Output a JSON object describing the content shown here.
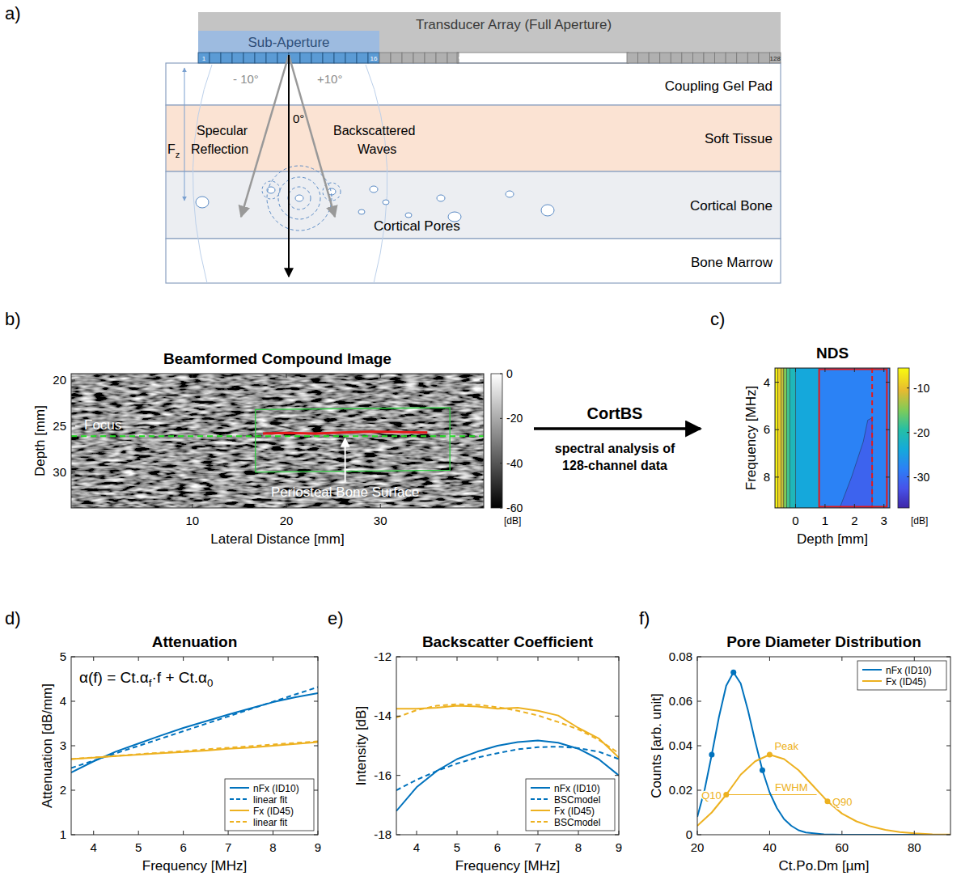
{
  "panel_labels": [
    "a)",
    "b)",
    "c)",
    "d)",
    "e)",
    "f)"
  ],
  "diagram": {
    "transducer": "Transducer Array (Full Aperture)",
    "sub_aperture": "Sub-Aperture",
    "element_labels": [
      "1",
      "16",
      "128"
    ],
    "angles": [
      "- 10°",
      "+10°",
      "0°"
    ],
    "specular": [
      "Specular",
      "Reflection"
    ],
    "backscatter": [
      "Backscattered",
      "Waves"
    ],
    "force": [
      {
        "text": "F"
      },
      {
        "text": "z",
        "sub": true
      }
    ],
    "layers": [
      "Coupling Gel Pad",
      "Soft Tissue",
      "Cortical Bone",
      "Bone Marrow"
    ],
    "pores": "Cortical Pores"
  },
  "transform": {
    "label": "CortBS",
    "caption": [
      "spectral analysis of",
      "128-channel data"
    ]
  },
  "chart_data": [
    {
      "type": "image",
      "title": "Beamformed Compound Image",
      "xlabel": "Lateral Distance [mm]",
      "ylabel": "Depth [mm]",
      "xlim": [
        -2.9,
        41
      ],
      "xticks": [
        10,
        20,
        30
      ],
      "ylim": [
        33.9,
        19.3
      ],
      "yticks": [
        20,
        25,
        30
      ],
      "colorbar": {
        "lim": [
          -60,
          0
        ],
        "ticks": [
          0,
          -20,
          -40,
          -60
        ],
        "unit": "[dB]"
      },
      "focus": {
        "label": "Focus",
        "y": 26.1
      },
      "roi": {
        "x": [
          16.7,
          37.4,
          37.4,
          16.7
        ],
        "y": [
          23.2,
          23.0,
          29.8,
          30.0
        ]
      },
      "surface": {
        "label": "Periosteal Bone Surface",
        "x": [
          17.5,
          20,
          23,
          26,
          29,
          32,
          35
        ],
        "y": [
          25.8,
          25.75,
          25.8,
          25.7,
          25.6,
          25.65,
          25.7
        ]
      }
    },
    {
      "type": "contour",
      "title": "NDS",
      "xlabel": "Depth [mm]",
      "ylabel": "Frequency [MHz]",
      "xlim": [
        -0.7,
        3.2
      ],
      "xticks": [
        0,
        1,
        2,
        3
      ],
      "ylim": [
        9.3,
        3.4
      ],
      "yticks": [
        4,
        6,
        8
      ],
      "colorbar": {
        "lim": [
          -37,
          -5.5
        ],
        "ticks": [
          -10,
          -20,
          -30
        ],
        "unit": "[dB]"
      },
      "bands": {
        "x0": [
          -0.7,
          -0.6,
          -0.5,
          -0.4,
          -0.3,
          -0.2,
          0.0,
          0.8
        ],
        "x1": [
          -0.6,
          -0.5,
          -0.4,
          -0.3,
          -0.2,
          0.0,
          0.8,
          3.2
        ],
        "values": [
          -6,
          -9,
          -12,
          -15,
          -18,
          -21,
          -24,
          -28
        ]
      },
      "region": {
        "value": -31,
        "x": [
          1.5,
          1.9,
          2.3,
          2.45,
          2.6,
          2.6
        ],
        "y": [
          9.3,
          8.0,
          6.5,
          5.6,
          5.5,
          9.3
        ]
      },
      "roi": {
        "x": [
          0.8,
          3.1
        ]
      },
      "cut": 2.6
    },
    {
      "type": "line",
      "title": "Attenuation",
      "xlabel": "Frequency [MHz]",
      "ylabel": "Attenuation [dB/mm]",
      "xlim": [
        3.5,
        9
      ],
      "xticks": [
        4,
        5,
        6,
        7,
        8,
        9
      ],
      "ylim": [
        1,
        5
      ],
      "yticks": [
        1,
        2,
        3,
        4,
        5
      ],
      "legend": "lower right",
      "annotation": [
        {
          "text": "α(f) = Ct.α"
        },
        {
          "text": "f",
          "sub": true
        },
        {
          "text": "·f + Ct.α"
        },
        {
          "text": "0",
          "sub": true
        }
      ],
      "series": [
        {
          "name": "nFx (ID10)",
          "color": "#0072bd",
          "line_style": "solid",
          "x": [
            3.5,
            4,
            4.5,
            5,
            5.5,
            6,
            6.5,
            7,
            7.5,
            8,
            8.5,
            9
          ],
          "values": [
            2.4,
            2.65,
            2.87,
            3.05,
            3.23,
            3.4,
            3.55,
            3.7,
            3.84,
            3.98,
            4.09,
            4.18
          ]
        },
        {
          "name": "linear fit",
          "color": "#0072bd",
          "line_style": "dashed",
          "x": [
            3.5,
            9
          ],
          "values": [
            2.5,
            4.32
          ]
        },
        {
          "name": "Fx (ID45)",
          "color": "#edb120",
          "line_style": "solid",
          "x": [
            3.5,
            4,
            4.5,
            5,
            5.5,
            6,
            6.5,
            7,
            7.5,
            8,
            8.5,
            9
          ],
          "values": [
            2.7,
            2.73,
            2.77,
            2.8,
            2.83,
            2.86,
            2.89,
            2.93,
            2.96,
            3.0,
            3.04,
            3.08
          ]
        },
        {
          "name": "linear fit",
          "color": "#edb120",
          "line_style": "dashed",
          "x": [
            3.5,
            9
          ],
          "values": [
            2.7,
            3.1
          ]
        }
      ]
    },
    {
      "type": "line",
      "title": "Backscatter Coefficient",
      "xlabel": "Frequency [MHz]",
      "ylabel": "Intensity [dB]",
      "xlim": [
        3.5,
        9
      ],
      "xticks": [
        4,
        5,
        6,
        7,
        8,
        9
      ],
      "ylim": [
        -18,
        -12
      ],
      "yticks": [
        -12,
        -14,
        -16,
        -18
      ],
      "legend": "lower right",
      "series": [
        {
          "name": "nFx (ID10)",
          "color": "#0072bd",
          "line_style": "solid",
          "x": [
            3.5,
            4,
            4.5,
            5,
            5.5,
            6,
            6.5,
            7,
            7.5,
            8,
            8.5,
            9
          ],
          "values": [
            -17.2,
            -16.4,
            -15.85,
            -15.45,
            -15.2,
            -15.0,
            -14.88,
            -14.82,
            -14.9,
            -15.1,
            -15.45,
            -16.0
          ]
        },
        {
          "name": "BSCmodel",
          "color": "#0072bd",
          "line_style": "dashed",
          "x": [
            3.5,
            4,
            4.5,
            5,
            5.5,
            6,
            6.5,
            7,
            7.5,
            8,
            8.5,
            9
          ],
          "values": [
            -16.5,
            -16.15,
            -15.85,
            -15.6,
            -15.4,
            -15.25,
            -15.12,
            -15.05,
            -15.03,
            -15.08,
            -15.2,
            -15.45
          ]
        },
        {
          "name": "Fx (ID45)",
          "color": "#edb120",
          "line_style": "solid",
          "x": [
            3.5,
            4,
            4.5,
            5,
            5.5,
            6,
            6.5,
            7,
            7.5,
            8,
            8.5,
            9
          ],
          "values": [
            -13.75,
            -13.75,
            -13.72,
            -13.65,
            -13.68,
            -13.75,
            -13.72,
            -13.82,
            -13.98,
            -14.4,
            -14.75,
            -15.4
          ]
        },
        {
          "name": "BSCmodel",
          "color": "#edb120",
          "line_style": "dashed",
          "x": [
            3.5,
            4,
            4.5,
            5,
            5.5,
            6,
            6.5,
            7,
            7.5,
            8,
            8.5,
            9
          ],
          "values": [
            -14.05,
            -13.8,
            -13.65,
            -13.6,
            -13.62,
            -13.7,
            -13.82,
            -13.98,
            -14.2,
            -14.45,
            -14.8,
            -15.25
          ]
        }
      ]
    },
    {
      "type": "line",
      "title": "Pore Diameter Distribution",
      "xlabel": "Ct.Po.Dm [µm]",
      "ylabel": "Counts [arb. unit]",
      "xlim": [
        20,
        90
      ],
      "xticks": [
        20,
        40,
        60,
        80
      ],
      "ylim": [
        0,
        0.08
      ],
      "yticks": [
        0,
        0.02,
        0.04,
        0.06,
        0.08
      ],
      "legend": "upper right",
      "series": [
        {
          "name": "nFx (ID10)",
          "color": "#0072bd",
          "line_style": "solid",
          "marker": "circle",
          "x": [
            20,
            22,
            24,
            26,
            28,
            30,
            32,
            34,
            36,
            38,
            40,
            42,
            44,
            46,
            48,
            50,
            55,
            60,
            70,
            90
          ],
          "values": [
            0.008,
            0.02,
            0.036,
            0.053,
            0.067,
            0.073,
            0.068,
            0.056,
            0.042,
            0.029,
            0.019,
            0.012,
            0.007,
            0.004,
            0.002,
            0.001,
            0.0002,
            0,
            0,
            0
          ],
          "markers": {
            "x": [
              24,
              30,
              38
            ],
            "y": [
              0.036,
              0.073,
              0.029
            ]
          }
        },
        {
          "name": "Fx (ID45)",
          "color": "#edb120",
          "line_style": "solid",
          "marker": "circle",
          "x": [
            20,
            24,
            28,
            32,
            36,
            40,
            44,
            48,
            52,
            56,
            60,
            64,
            68,
            72,
            76,
            80,
            85,
            90
          ],
          "values": [
            0.004,
            0.01,
            0.018,
            0.027,
            0.033,
            0.036,
            0.034,
            0.029,
            0.022,
            0.015,
            0.0095,
            0.006,
            0.0037,
            0.0022,
            0.0012,
            0.0006,
            0.0002,
            0.0001
          ],
          "markers": {
            "x": [
              28,
              40,
              56
            ],
            "y": [
              0.018,
              0.036,
              0.015
            ]
          }
        }
      ],
      "fwhm_line": {
        "x": [
          28,
          53
        ],
        "y": [
          0.018,
          0.018
        ]
      },
      "annotations": [
        {
          "text": "Peak",
          "x": 40,
          "y": 0.036
        },
        {
          "text": "FWHM",
          "x": 46,
          "y": 0.018
        },
        {
          "text": "Q10",
          "x": 28,
          "y": 0.018
        },
        {
          "text": "Q90",
          "x": 56,
          "y": 0.015
        }
      ]
    }
  ]
}
